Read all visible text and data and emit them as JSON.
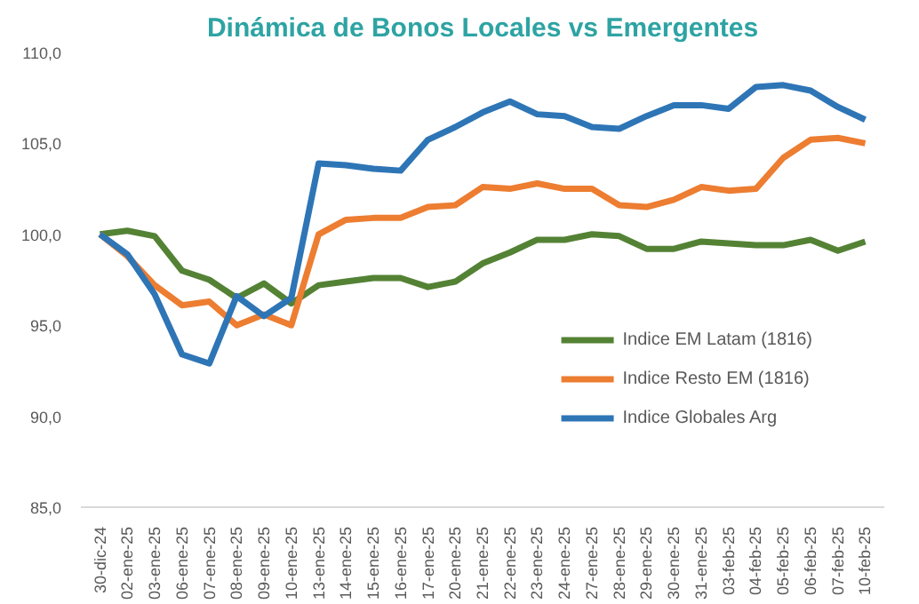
{
  "chart_data": {
    "type": "line",
    "title": "Dinámica de Bonos Locales vs Emergentes",
    "categories": [
      "30-dic-24",
      "02-ene-25",
      "03-ene-25",
      "06-ene-25",
      "07-ene-25",
      "08-ene-25",
      "09-ene-25",
      "10-ene-25",
      "13-ene-25",
      "14-ene-25",
      "15-ene-25",
      "16-ene-25",
      "17-ene-25",
      "20-ene-25",
      "21-ene-25",
      "22-ene-25",
      "23-ene-25",
      "24-ene-25",
      "27-ene-25",
      "28-ene-25",
      "29-ene-25",
      "30-ene-25",
      "31-ene-25",
      "03-feb-25",
      "04-feb-25",
      "05-feb-25",
      "06-feb-25",
      "07-feb-25",
      "10-feb-25"
    ],
    "series": [
      {
        "name": "Indice EM Latam (1816)",
        "color": "#548235",
        "values": [
          100,
          100.2,
          99.9,
          98.0,
          97.5,
          96.5,
          97.3,
          96.2,
          97.2,
          97.4,
          97.6,
          97.6,
          97.1,
          97.4,
          98.4,
          99.0,
          99.7,
          99.7,
          100.0,
          99.9,
          99.2,
          99.2,
          99.6,
          99.5,
          99.4,
          99.4,
          99.7,
          99.1,
          99.6
        ]
      },
      {
        "name": "Indice Resto EM (1816)",
        "color": "#ed7d31",
        "values": [
          100,
          98.8,
          97.2,
          96.1,
          96.3,
          95.0,
          95.6,
          95.0,
          100.0,
          100.8,
          100.9,
          100.9,
          101.5,
          101.6,
          102.6,
          102.5,
          102.8,
          102.5,
          102.5,
          101.6,
          101.5,
          101.9,
          102.6,
          102.4,
          102.5,
          104.2,
          105.2,
          105.3,
          105.0
        ]
      },
      {
        "name": "Indice Globales Arg",
        "color": "#2e75b6",
        "values": [
          100,
          98.9,
          96.7,
          93.4,
          92.9,
          96.6,
          95.5,
          96.5,
          103.9,
          103.8,
          103.6,
          103.5,
          105.2,
          105.9,
          106.7,
          107.3,
          106.6,
          106.5,
          105.9,
          105.8,
          106.5,
          107.1,
          107.1,
          106.9,
          108.1,
          108.2,
          107.9,
          107.0,
          106.3
        ]
      }
    ],
    "ylim": [
      85,
      110
    ],
    "yticks": [
      {
        "value": 85,
        "label": "85,0"
      },
      {
        "value": 90,
        "label": "90,0"
      },
      {
        "value": 95,
        "label": "95,0"
      },
      {
        "value": 100,
        "label": "100,0"
      },
      {
        "value": 105,
        "label": "105,0"
      },
      {
        "value": 110,
        "label": "110,0"
      }
    ],
    "grid": false,
    "legend": "bottom right",
    "marker": "none",
    "line_style": "solid"
  }
}
